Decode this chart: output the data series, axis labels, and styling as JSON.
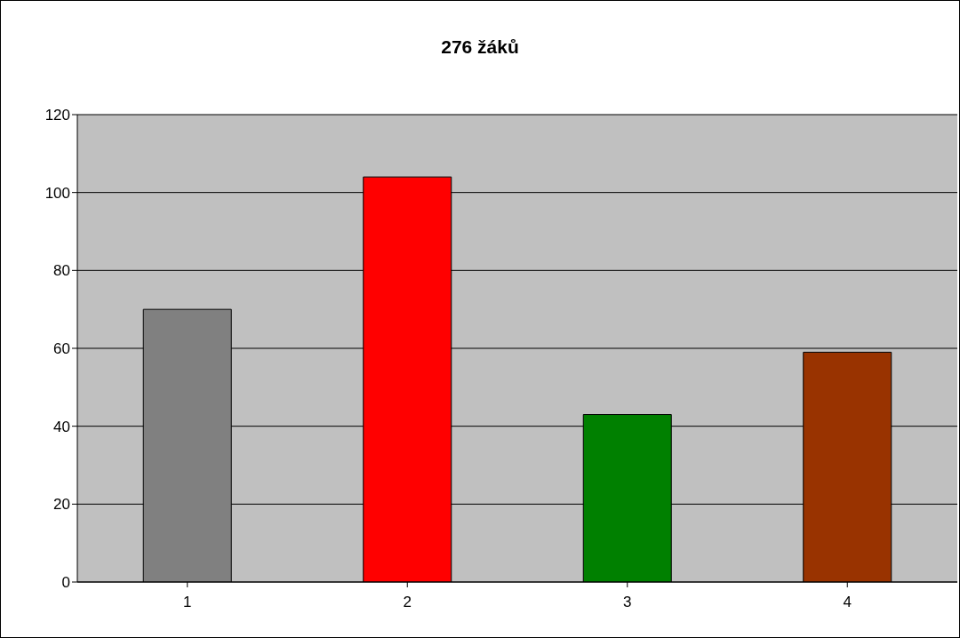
{
  "chart_data": {
    "type": "bar",
    "title": "276 žáků",
    "categories": [
      "1",
      "2",
      "3",
      "4"
    ],
    "values": [
      70,
      104,
      43,
      59
    ],
    "colors": [
      "#808080",
      "#ff0000",
      "#008000",
      "#993300"
    ],
    "ylim": [
      0,
      120
    ],
    "yticks": [
      0,
      20,
      40,
      60,
      80,
      100,
      120
    ],
    "grid": "y"
  }
}
